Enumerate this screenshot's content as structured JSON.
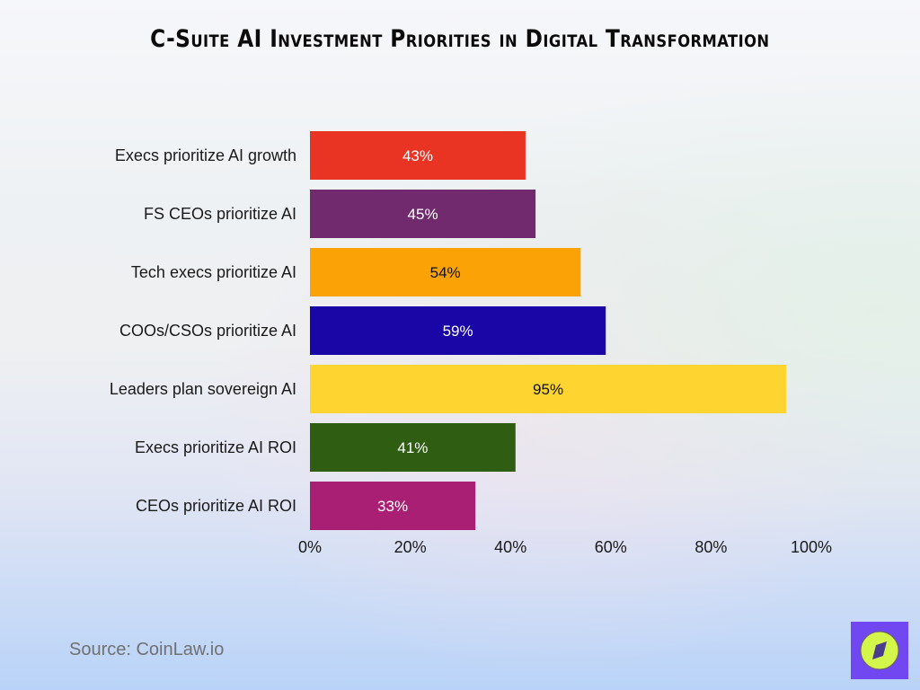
{
  "title": "C-Suite AI Investment Priorities in Digital Transformation",
  "source": "Source: CoinLaw.io",
  "chart_data": {
    "type": "bar",
    "orientation": "horizontal",
    "categories": [
      "Execs prioritize AI growth",
      "FS CEOs prioritize AI",
      "Tech execs prioritize AI",
      "COOs/CSOs prioritize AI",
      "Leaders plan sovereign AI",
      "Execs prioritize AI ROI",
      "CEOs prioritize AI ROI"
    ],
    "values": [
      43,
      45,
      54,
      59,
      95,
      41,
      33
    ],
    "data_labels": [
      "43%",
      "45%",
      "54%",
      "59%",
      "95%",
      "41%",
      "33%"
    ],
    "colors": [
      "#e93323",
      "#722a6e",
      "#fba306",
      "#1a06a6",
      "#fed430",
      "#2f5d12",
      "#a91f73"
    ],
    "label_colors": [
      "#ffffff",
      "#ffffff",
      "#111111",
      "#ffffff",
      "#111111",
      "#ffffff",
      "#ffffff"
    ],
    "xlim": [
      0,
      100
    ],
    "xticks": [
      "0%",
      "20%",
      "40%",
      "60%",
      "80%",
      "100%"
    ],
    "xlabel": "",
    "ylabel": "",
    "grid": false,
    "legend": "none"
  },
  "logo": {
    "bg": "#7047f0",
    "circle": "#d4f54a",
    "icon": "compass-icon"
  }
}
